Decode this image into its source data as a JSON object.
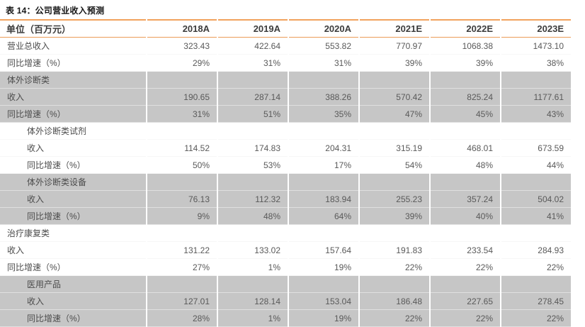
{
  "title": "表 14：公司营业收入预测",
  "colors": {
    "accent_orange": "#F2A35E",
    "section_gray": "#C6C6C6",
    "text_dark": "#3c3c3c",
    "text_body": "#595959"
  },
  "table": {
    "unit_header": "单位（百万元）",
    "columns": [
      "2018A",
      "2019A",
      "2020A",
      "2021E",
      "2022E",
      "2023E"
    ],
    "rows": [
      {
        "label": "营业总收入",
        "indent": 0,
        "gray": false,
        "section": false,
        "values": [
          "323.43",
          "422.64",
          "553.82",
          "770.97",
          "1068.38",
          "1473.10"
        ]
      },
      {
        "label": "同比增速（%）",
        "indent": 0,
        "gray": false,
        "section": false,
        "values": [
          "29%",
          "31%",
          "31%",
          "39%",
          "39%",
          "38%"
        ]
      },
      {
        "label": "体外诊断类",
        "indent": 0,
        "gray": true,
        "section": true,
        "values": []
      },
      {
        "label": "收入",
        "indent": 0,
        "gray": true,
        "section": false,
        "values": [
          "190.65",
          "287.14",
          "388.26",
          "570.42",
          "825.24",
          "1177.61"
        ]
      },
      {
        "label": "同比增速（%）",
        "indent": 0,
        "gray": true,
        "section": false,
        "values": [
          "31%",
          "51%",
          "35%",
          "47%",
          "45%",
          "43%"
        ]
      },
      {
        "label": "体外诊断类试剂",
        "indent": 1,
        "gray": false,
        "section": true,
        "values": []
      },
      {
        "label": "收入",
        "indent": 1,
        "gray": false,
        "section": false,
        "values": [
          "114.52",
          "174.83",
          "204.31",
          "315.19",
          "468.01",
          "673.59"
        ]
      },
      {
        "label": "同比增速（%）",
        "indent": 1,
        "gray": false,
        "section": false,
        "values": [
          "50%",
          "53%",
          "17%",
          "54%",
          "48%",
          "44%"
        ]
      },
      {
        "label": "体外诊断类设备",
        "indent": 1,
        "gray": true,
        "section": true,
        "values": []
      },
      {
        "label": "收入",
        "indent": 1,
        "gray": true,
        "section": false,
        "values": [
          "76.13",
          "112.32",
          "183.94",
          "255.23",
          "357.24",
          "504.02"
        ]
      },
      {
        "label": "同比增速（%）",
        "indent": 1,
        "gray": true,
        "section": false,
        "values": [
          "9%",
          "48%",
          "64%",
          "39%",
          "40%",
          "41%"
        ]
      },
      {
        "label": "治疗康复类",
        "indent": 0,
        "gray": false,
        "section": true,
        "values": []
      },
      {
        "label": "收入",
        "indent": 0,
        "gray": false,
        "section": false,
        "values": [
          "131.22",
          "133.02",
          "157.64",
          "191.83",
          "233.54",
          "284.93"
        ]
      },
      {
        "label": "同比增速（%）",
        "indent": 0,
        "gray": false,
        "section": false,
        "values": [
          "27%",
          "1%",
          "19%",
          "22%",
          "22%",
          "22%"
        ]
      },
      {
        "label": "医用产品",
        "indent": 1,
        "gray": true,
        "section": true,
        "values": []
      },
      {
        "label": "收入",
        "indent": 1,
        "gray": true,
        "section": false,
        "values": [
          "127.01",
          "128.14",
          "153.04",
          "186.48",
          "227.65",
          "278.45"
        ]
      },
      {
        "label": "同比增速（%）",
        "indent": 1,
        "gray": true,
        "section": false,
        "values": [
          "28%",
          "1%",
          "19%",
          "22%",
          "22%",
          "22%"
        ]
      }
    ]
  }
}
